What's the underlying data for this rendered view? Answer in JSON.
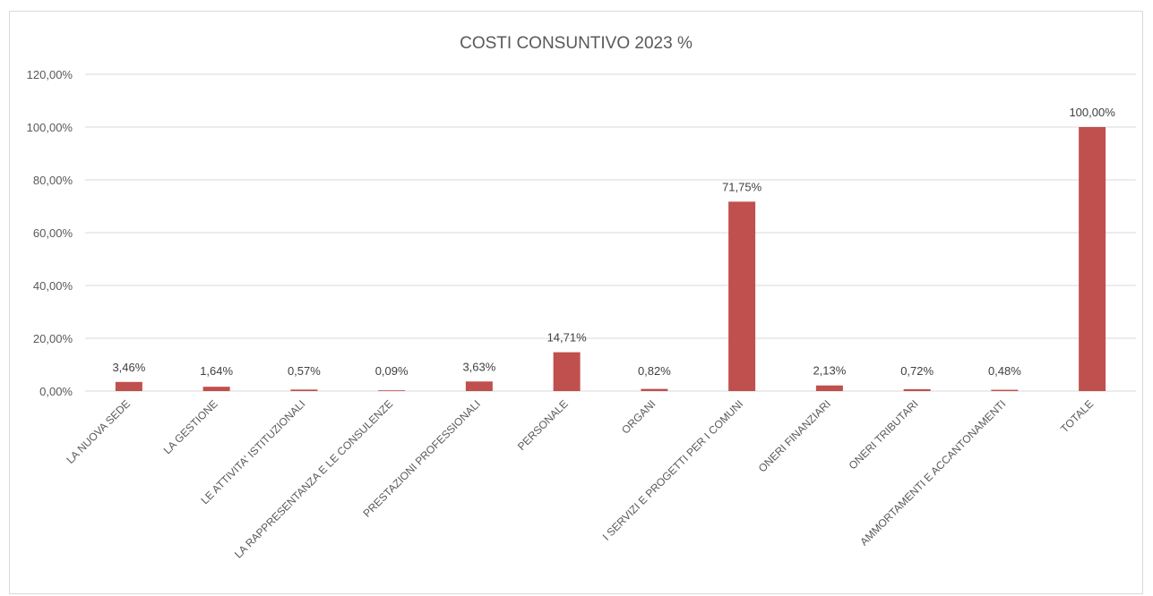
{
  "chart_data": {
    "type": "bar",
    "title": "COSTI CONSUNTIVO 2023 %",
    "xlabel": "",
    "ylabel": "",
    "categories": [
      "LA NUOVA SEDE",
      "LA GESTIONE",
      "LE ATTIVITA' ISTITUZIONALI",
      "LA RAPPRESENTANZA E LE CONSULENZE",
      "PRESTAZIONI PROFESSIONALI",
      "PERSONALE",
      "ORGANI",
      "I SERVIZI E PROGETTI PER I COMUNI",
      "ONERI FINANZIARI",
      "ONERI TRIBUTARI",
      "AMMORTAMENTI E ACCANTONAMENTI",
      "TOTALE"
    ],
    "values": [
      3.46,
      1.64,
      0.57,
      0.09,
      3.63,
      14.71,
      0.82,
      71.75,
      2.13,
      0.72,
      0.48,
      100.0
    ],
    "value_labels": [
      "3,46%",
      "1,64%",
      "0,57%",
      "0,09%",
      "3,63%",
      "14,71%",
      "0,82%",
      "71,75%",
      "2,13%",
      "0,72%",
      "0,48%",
      "100,00%"
    ],
    "ylim": [
      0,
      120
    ],
    "yticks": [
      0,
      20,
      40,
      60,
      80,
      100,
      120
    ],
    "ytick_labels": [
      "0,00%",
      "20,00%",
      "40,00%",
      "60,00%",
      "80,00%",
      "100,00%",
      "120,00%"
    ],
    "grid": true,
    "legend": "none",
    "bar_color": "#C0504D",
    "grid_color": "#D9D9D9"
  }
}
